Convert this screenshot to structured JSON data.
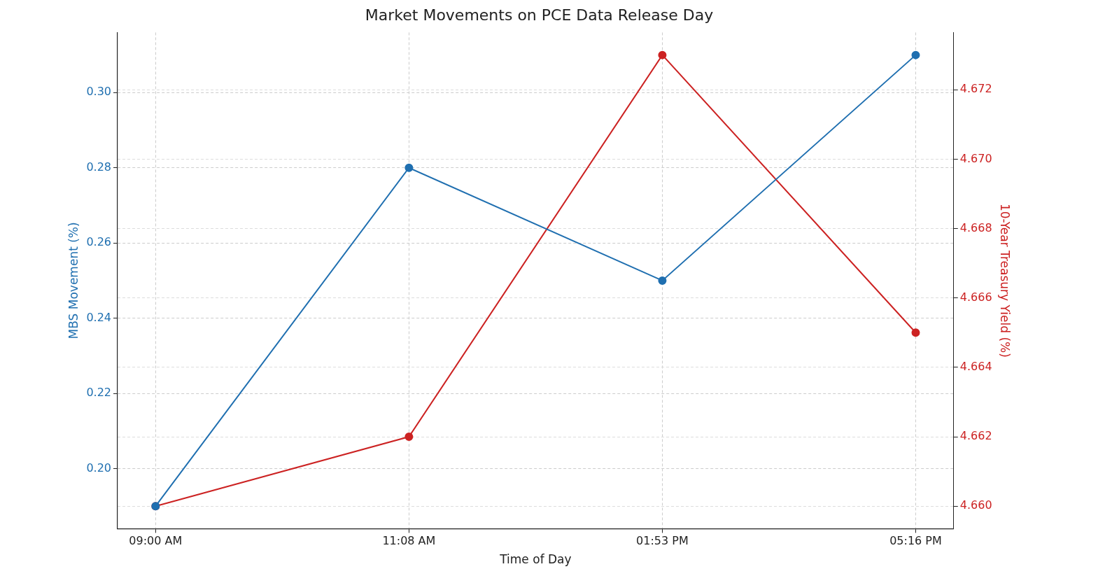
{
  "chart_data": {
    "type": "line",
    "title": "Market Movements on PCE Data Release Day",
    "x_label": "Time of Day",
    "y_label": "MBS Movement (%)",
    "y2_label": "10-Year Treasury Yield (%)",
    "categories": [
      "09:00 AM",
      "11:08 AM",
      "01:53 PM",
      "05:16 PM"
    ],
    "series": [
      {
        "color": "#1f6fb0",
        "marker": "circle",
        "values": [
          0.19,
          0.28,
          0.25,
          0.31
        ]
      },
      {
        "color": "#cc2222",
        "marker": "circle",
        "axis": "y2",
        "values": [
          4.66,
          4.662,
          4.673,
          4.665
        ]
      }
    ],
    "ylim": [
      0.184,
      0.316
    ],
    "yticks": [
      {
        "value": 0.2,
        "label": "0.20"
      },
      0.22,
      0.24,
      0.26,
      0.28,
      {
        "value": 0.3,
        "label": "0.30"
      }
    ],
    "y2lim": [
      4.65935,
      4.67365
    ],
    "y2ticks": [
      {
        "value": 4.66,
        "label": "4.660"
      },
      4.662,
      4.664,
      4.666,
      4.668,
      {
        "value": 4.67,
        "label": "4.670"
      },
      4.672
    ],
    "grid": true
  }
}
